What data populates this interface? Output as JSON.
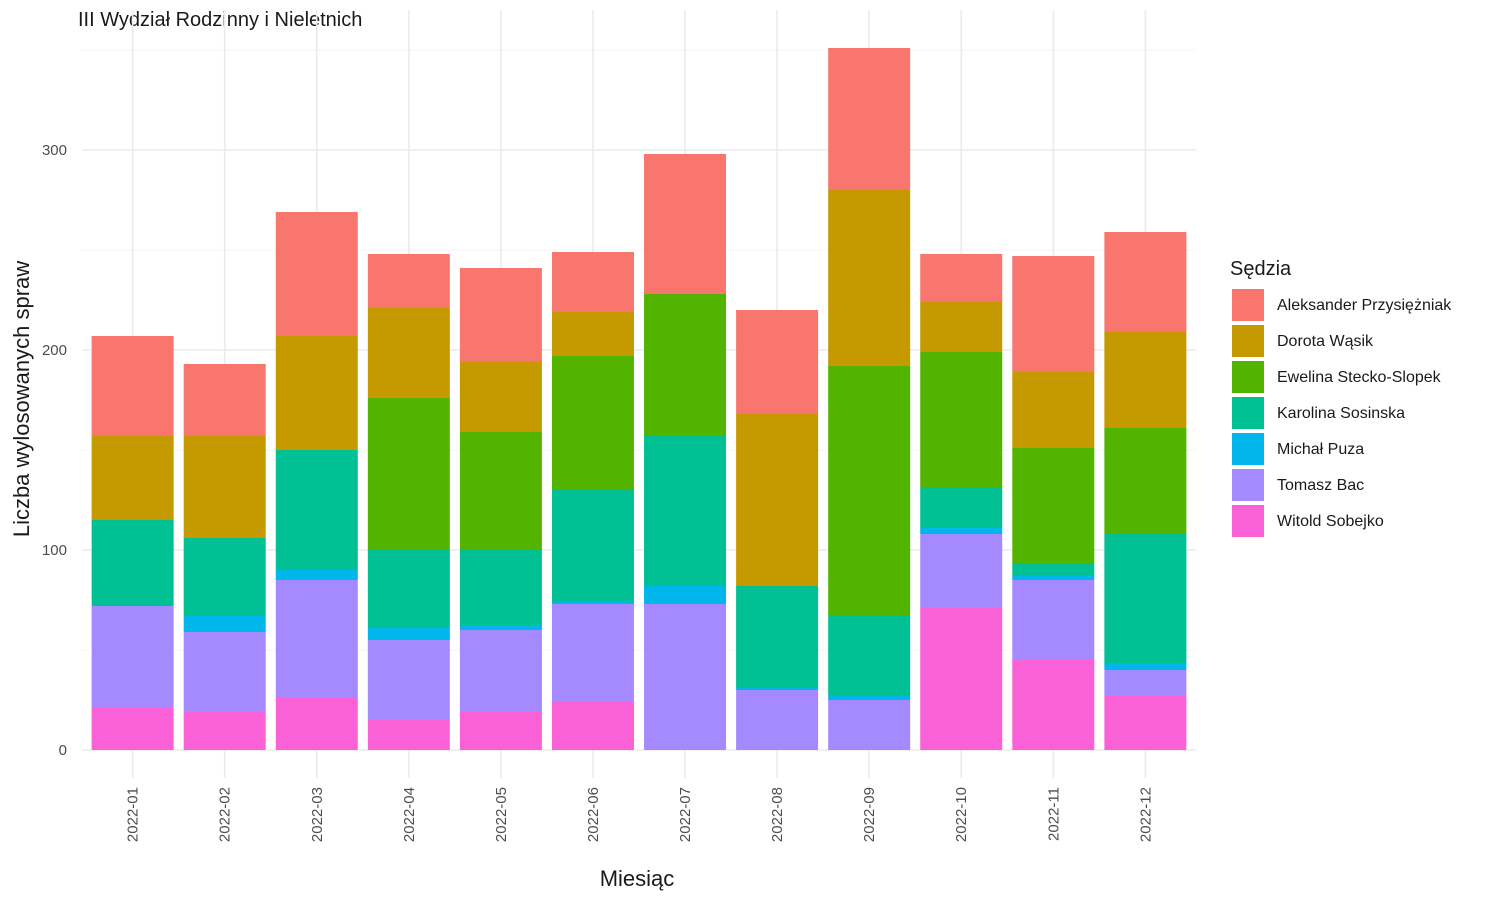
{
  "chart_data": {
    "type": "bar",
    "stacked": true,
    "title": "III Wydział Rodzinny i Nieletnich",
    "xlabel": "Miesiąc",
    "ylabel": "Liczba wylosowanych spraw",
    "ylim": [
      0,
      352
    ],
    "yticks": [
      0,
      100,
      200,
      300
    ],
    "grid": true,
    "legend": {
      "title": "Sędzia",
      "position": "right"
    },
    "categories": [
      "2022-01",
      "2022-02",
      "2022-03",
      "2022-04",
      "2022-05",
      "2022-06",
      "2022-07",
      "2022-08",
      "2022-09",
      "2022-10",
      "2022-11",
      "2022-12"
    ],
    "series": [
      {
        "name": "Aleksander Przysiężniak",
        "color": "#F8766D",
        "values": [
          50,
          36,
          62,
          27,
          47,
          30,
          70,
          52,
          71,
          24,
          58,
          50
        ]
      },
      {
        "name": "Dorota Wąsik",
        "color": "#C49A00",
        "values": [
          42,
          51,
          57,
          45,
          35,
          22,
          0,
          86,
          88,
          25,
          38,
          48
        ]
      },
      {
        "name": "Ewelina Stecko-Slopek",
        "color": "#53B400",
        "values": [
          0,
          0,
          0,
          76,
          59,
          67,
          71,
          0,
          125,
          68,
          58,
          53
        ]
      },
      {
        "name": "Karolina Sosinska",
        "color": "#00C094",
        "values": [
          43,
          39,
          60,
          39,
          38,
          56,
          75,
          51,
          40,
          20,
          6,
          65
        ]
      },
      {
        "name": "Michał Puza",
        "color": "#00B6EB",
        "values": [
          0,
          8,
          5,
          6,
          2,
          1,
          9,
          1,
          2,
          3,
          2,
          3
        ]
      },
      {
        "name": "Tomasz Bac",
        "color": "#A58AFF",
        "values": [
          51,
          40,
          59,
          40,
          41,
          49,
          73,
          30,
          25,
          37,
          40,
          13
        ]
      },
      {
        "name": "Witold Sobejko",
        "color": "#FB61D7",
        "values": [
          21,
          19,
          26,
          15,
          19,
          24,
          0,
          0,
          0,
          71,
          45,
          27
        ]
      }
    ]
  }
}
